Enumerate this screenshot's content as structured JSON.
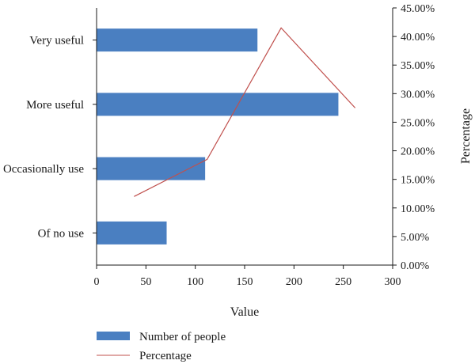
{
  "chart_data": {
    "type": "bar",
    "orientation": "horizontal",
    "categories": [
      "Very useful",
      "More useful",
      "Occasionally use",
      "Of no use"
    ],
    "series": [
      {
        "name": "Number of people",
        "type": "bar",
        "values": [
          163,
          245,
          110,
          71
        ],
        "color": "#4a7fc1"
      },
      {
        "name": "Percentage",
        "type": "line",
        "axis": "secondary",
        "x": [
          38,
          112,
          187,
          262
        ],
        "y": [
          12.0,
          18.5,
          41.5,
          27.5
        ],
        "color": "#c0504d"
      }
    ],
    "xlabel": "Value",
    "ylabel": "",
    "y2label": "Percentage",
    "xlim": [
      0,
      300
    ],
    "xticks": [
      0,
      50,
      100,
      150,
      200,
      250,
      300
    ],
    "y2lim": [
      0,
      45
    ],
    "y2ticks": [
      "0.00%",
      "5.00%",
      "10.00%",
      "15.00%",
      "20.00%",
      "25.00%",
      "30.00%",
      "35.00%",
      "40.00%",
      "45.00%"
    ],
    "grid": false,
    "legend_position": "bottom-left"
  }
}
